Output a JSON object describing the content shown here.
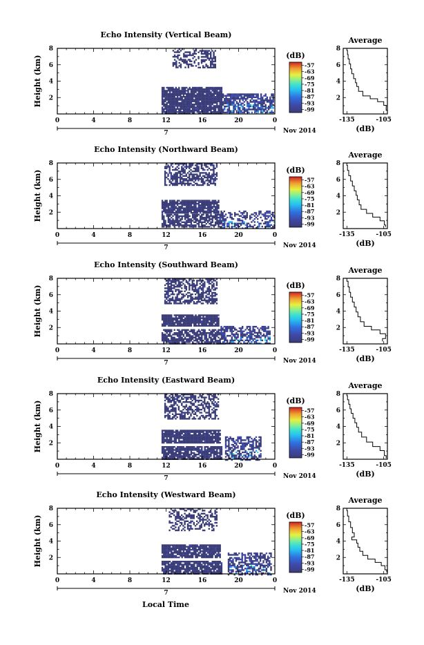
{
  "figure": {
    "xlabel": "Local Time",
    "date_label": "Nov 2014",
    "day_label": "7",
    "ylabel": "Height (km)",
    "colorbar_unit": "(dB)",
    "avg_title": "Average",
    "avg_xlabel": "(dB)"
  },
  "chart_data": [
    {
      "type": "heatmap",
      "title": "Echo Intensity (Vertical Beam)",
      "xlabel": "",
      "ylabel": "Height (km)",
      "x_ticks": [
        "0",
        "4",
        "8",
        "12",
        "16",
        "20",
        "0"
      ],
      "xlim": [
        0,
        24
      ],
      "ylim": [
        0,
        8
      ],
      "y_ticks": [
        "2",
        "4",
        "6",
        "8"
      ],
      "colorbar": {
        "unit": "(dB)",
        "labels": [
          "-57",
          "-63",
          "-69",
          "-75",
          "-81",
          "-87",
          "-93",
          "-99"
        ]
      },
      "regions": [
        {
          "t": [
            12.7,
            15.3
          ],
          "h": [
            5.7,
            8.0
          ],
          "density": 0.45,
          "level": "low"
        },
        {
          "t": [
            15.5,
            17.5
          ],
          "h": [
            5.6,
            7.8
          ],
          "density": 0.55,
          "level": "low"
        },
        {
          "t": [
            11.5,
            18.2
          ],
          "h": [
            0.0,
            3.3
          ],
          "density": 0.9,
          "level": "low"
        },
        {
          "t": [
            18.2,
            23.8
          ],
          "h": [
            0.2,
            2.5
          ],
          "density": 0.75,
          "level": "mixed"
        }
      ],
      "average": {
        "title": "Average",
        "xlabel": "(dB)",
        "x_ticks": [
          "-135",
          "-105"
        ],
        "xlim": [
          -138,
          -102
        ],
        "ylim": [
          0,
          8
        ],
        "y_ticks": [
          "2",
          "4",
          "6",
          "8"
        ],
        "profile_x": [
          -102.0,
          -103.0,
          -105.0,
          -110.0,
          -116.0,
          -122.0,
          -125.5,
          -127.0,
          -128.0,
          -129.5,
          -131.0,
          -132.0,
          -133.0,
          -134.0,
          -134.5,
          -135.0
        ],
        "profile_h": [
          0.1,
          0.8,
          1.3,
          1.7,
          2.0,
          2.4,
          3.1,
          3.6,
          4.0,
          4.6,
          5.2,
          5.8,
          6.4,
          7.0,
          7.5,
          8.0
        ]
      }
    },
    {
      "type": "heatmap",
      "title": "Echo Intensity (Northward Beam)",
      "xlabel": "",
      "ylabel": "Height (km)",
      "x_ticks": [
        "0",
        "4",
        "8",
        "12",
        "16",
        "20",
        "0"
      ],
      "xlim": [
        0,
        24
      ],
      "ylim": [
        0,
        8
      ],
      "y_ticks": [
        "2",
        "4",
        "6",
        "8"
      ],
      "colorbar": {
        "unit": "(dB)",
        "labels": [
          "-57",
          "-63",
          "-69",
          "-75",
          "-81",
          "-87",
          "-93",
          "-99"
        ]
      },
      "regions": [
        {
          "t": [
            11.8,
            17.5
          ],
          "h": [
            5.3,
            8.0
          ],
          "density": 0.6,
          "level": "low"
        },
        {
          "t": [
            11.5,
            17.8
          ],
          "h": [
            2.0,
            3.5
          ],
          "density": 0.9,
          "level": "low"
        },
        {
          "t": [
            11.5,
            18.5
          ],
          "h": [
            0.2,
            1.8
          ],
          "density": 0.7,
          "level": "low"
        },
        {
          "t": [
            18.0,
            24.0
          ],
          "h": [
            0.0,
            2.2
          ],
          "density": 0.45,
          "level": "mixed"
        }
      ],
      "average": {
        "title": "Average",
        "xlabel": "(dB)",
        "x_ticks": [
          "-135",
          "-105"
        ],
        "xlim": [
          -138,
          -102
        ],
        "ylim": [
          0,
          8
        ],
        "y_ticks": [
          "2",
          "4",
          "6",
          "8"
        ],
        "profile_x": [
          -103.5,
          -104.5,
          -108.0,
          -114.0,
          -119.0,
          -123.5,
          -125.0,
          -126.5,
          -127.5,
          -129.0,
          -130.5,
          -132.0,
          -133.5,
          -134.5,
          -135.0
        ],
        "profile_h": [
          0.2,
          0.7,
          1.2,
          1.6,
          2.1,
          2.6,
          3.2,
          3.8,
          4.3,
          4.9,
          5.5,
          6.1,
          6.8,
          7.4,
          8.0
        ]
      }
    },
    {
      "type": "heatmap",
      "title": "Echo Intensity (Southward Beam)",
      "xlabel": "",
      "ylabel": "Height (km)",
      "x_ticks": [
        "0",
        "4",
        "8",
        "12",
        "16",
        "20",
        "0"
      ],
      "xlim": [
        0,
        24
      ],
      "ylim": [
        0,
        8
      ],
      "y_ticks": [
        "2",
        "4",
        "6",
        "8"
      ],
      "colorbar": {
        "unit": "(dB)",
        "labels": [
          "-57",
          "-63",
          "-69",
          "-75",
          "-81",
          "-87",
          "-93",
          "-99"
        ]
      },
      "regions": [
        {
          "t": [
            11.8,
            17.5
          ],
          "h": [
            5.0,
            8.0
          ],
          "density": 0.6,
          "level": "low"
        },
        {
          "t": [
            11.5,
            17.8
          ],
          "h": [
            2.2,
            3.6
          ],
          "density": 0.9,
          "level": "low"
        },
        {
          "t": [
            11.5,
            18.5
          ],
          "h": [
            0.0,
            1.8
          ],
          "density": 0.75,
          "level": "low"
        },
        {
          "t": [
            18.0,
            23.5
          ],
          "h": [
            0.0,
            2.2
          ],
          "density": 0.6,
          "level": "mixed"
        }
      ],
      "average": {
        "title": "Average",
        "xlabel": "(dB)",
        "x_ticks": [
          "-135",
          "-105"
        ],
        "xlim": [
          -138,
          -102
        ],
        "ylim": [
          0,
          8
        ],
        "y_ticks": [
          "2",
          "4",
          "6",
          "8"
        ],
        "profile_x": [
          -106.0,
          -103.5,
          -108.0,
          -115.0,
          -121.0,
          -124.0,
          -126.0,
          -127.5,
          -129.0,
          -130.5,
          -132.0,
          -133.0,
          -134.0,
          -135.0
        ],
        "profile_h": [
          0.3,
          1.0,
          1.5,
          1.9,
          2.4,
          3.0,
          3.6,
          4.2,
          4.8,
          5.4,
          6.0,
          6.6,
          7.3,
          8.0
        ]
      }
    },
    {
      "type": "heatmap",
      "title": "Echo Intensity (Eastward Beam)",
      "xlabel": "",
      "ylabel": "Height (km)",
      "x_ticks": [
        "0",
        "4",
        "8",
        "12",
        "16",
        "20",
        "0"
      ],
      "xlim": [
        0,
        24
      ],
      "ylim": [
        0,
        8
      ],
      "y_ticks": [
        "2",
        "4",
        "6",
        "8"
      ],
      "colorbar": {
        "unit": "(dB)",
        "labels": [
          "-57",
          "-63",
          "-69",
          "-75",
          "-81",
          "-87",
          "-93",
          "-99"
        ]
      },
      "regions": [
        {
          "t": [
            11.8,
            17.8
          ],
          "h": [
            5.0,
            8.0
          ],
          "density": 0.55,
          "level": "low"
        },
        {
          "t": [
            11.5,
            18.0
          ],
          "h": [
            2.0,
            3.6
          ],
          "density": 0.9,
          "level": "low"
        },
        {
          "t": [
            11.5,
            18.2
          ],
          "h": [
            0.0,
            1.6
          ],
          "density": 0.85,
          "level": "low"
        },
        {
          "t": [
            18.5,
            22.5
          ],
          "h": [
            0.0,
            2.8
          ],
          "density": 0.55,
          "level": "mixed"
        }
      ],
      "average": {
        "title": "Average",
        "xlabel": "(dB)",
        "x_ticks": [
          "-135",
          "-105"
        ],
        "xlim": [
          -138,
          -102
        ],
        "ylim": [
          0,
          8
        ],
        "y_ticks": [
          "2",
          "4",
          "6",
          "8"
        ],
        "profile_x": [
          -103.0,
          -104.5,
          -108.0,
          -114.0,
          -119.0,
          -123.0,
          -125.5,
          -127.0,
          -128.5,
          -130.0,
          -131.5,
          -132.5,
          -133.5,
          -134.5,
          -135.0
        ],
        "profile_h": [
          0.1,
          0.8,
          1.3,
          1.8,
          2.4,
          3.0,
          3.6,
          4.2,
          4.7,
          5.3,
          5.9,
          6.4,
          7.0,
          7.5,
          8.0
        ]
      }
    },
    {
      "type": "heatmap",
      "title": "Echo Intensity (Westward Beam)",
      "xlabel": "Local Time",
      "ylabel": "Height (km)",
      "x_ticks": [
        "0",
        "4",
        "8",
        "12",
        "16",
        "20",
        "0"
      ],
      "xlim": [
        0,
        24
      ],
      "ylim": [
        0,
        8
      ],
      "y_ticks": [
        "2",
        "4",
        "6",
        "8"
      ],
      "colorbar": {
        "unit": "(dB)",
        "labels": [
          "-57",
          "-63",
          "-69",
          "-75",
          "-81",
          "-87",
          "-93",
          "-99"
        ]
      },
      "regions": [
        {
          "t": [
            12.3,
            17.5
          ],
          "h": [
            5.3,
            8.0
          ],
          "density": 0.45,
          "level": "low"
        },
        {
          "t": [
            11.5,
            18.0
          ],
          "h": [
            2.0,
            3.6
          ],
          "density": 0.9,
          "level": "low"
        },
        {
          "t": [
            11.5,
            18.2
          ],
          "h": [
            0.0,
            1.6
          ],
          "density": 0.85,
          "level": "low"
        },
        {
          "t": [
            18.8,
            23.5
          ],
          "h": [
            0.0,
            2.6
          ],
          "density": 0.6,
          "level": "mixed"
        }
      ],
      "average": {
        "title": "Average",
        "xlabel": "(dB)",
        "x_ticks": [
          "-135",
          "-105"
        ],
        "xlim": [
          -138,
          -102
        ],
        "ylim": [
          0,
          8
        ],
        "y_ticks": [
          "2",
          "4",
          "6",
          "8"
        ],
        "profile_x": [
          -102.5,
          -104.0,
          -107.0,
          -112.0,
          -118.0,
          -122.0,
          -124.5,
          -126.0,
          -127.0,
          -131.0,
          -129.0,
          -130.5,
          -132.0,
          -133.5,
          -134.5,
          -135.0
        ],
        "profile_h": [
          0.2,
          0.8,
          1.2,
          1.6,
          2.0,
          2.5,
          3.0,
          3.5,
          4.0,
          4.3,
          4.7,
          5.3,
          6.0,
          6.7,
          7.4,
          8.0
        ]
      }
    }
  ],
  "colors": {
    "background": "#ffffff",
    "axis": "#000000",
    "base_echo": "#3a3d78",
    "colormap": [
      "#3a3d78",
      "#3f49a8",
      "#2f6fe0",
      "#28a8f0",
      "#3ee0e0",
      "#8cf08c",
      "#e8f040",
      "#f0b030",
      "#f06028",
      "#d02020"
    ]
  }
}
